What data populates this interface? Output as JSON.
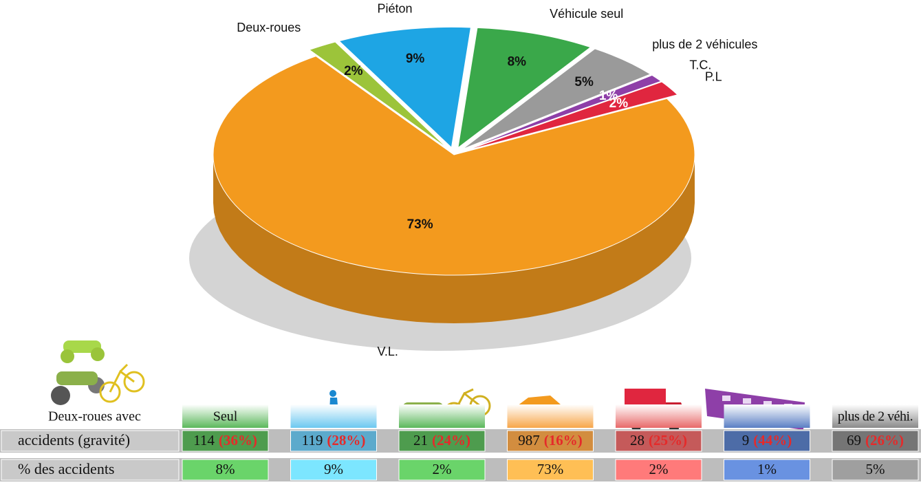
{
  "chart_data": {
    "type": "pie",
    "categories": [
      "Deux-roues",
      "Piéton",
      "Véhicule seul",
      "plus de 2 véhicules",
      "T.C.",
      "P.L",
      "V.L."
    ],
    "values": [
      2,
      9,
      8,
      5,
      1,
      2,
      73
    ],
    "value_labels": [
      "2%",
      "9%",
      "8%",
      "5%",
      "1%",
      "2%",
      "73%"
    ],
    "colors": [
      "#9cc43a",
      "#1ea5e4",
      "#3aa84a",
      "#9a9a9a",
      "#8e3fa8",
      "#e0263f",
      "#f39a1e"
    ]
  },
  "table": {
    "header": {
      "label": "Deux-roues avec",
      "first": "Seul",
      "last": "plus de 2 véhi."
    },
    "column_colors": [
      "#5cb85c",
      "#6cc8f0",
      "#5cb85c",
      "#f7a64a",
      "#e86a6a",
      "#5b7fc4",
      "#8a8a8a"
    ],
    "rows": [
      {
        "label": "accidents (gravité)",
        "cells": [
          [
            "114",
            "(36%)"
          ],
          [
            "119",
            "(28%)"
          ],
          [
            "21",
            "(24%)"
          ],
          [
            "987",
            "(16%)"
          ],
          [
            "28",
            "(25%)"
          ],
          [
            "9",
            "(44%)"
          ],
          [
            "69",
            "(26%)"
          ]
        ]
      },
      {
        "label": "% des accidents",
        "cells": [
          "8%",
          "9%",
          "2%",
          "73%",
          "2%",
          "1%",
          "5%"
        ]
      }
    ]
  }
}
